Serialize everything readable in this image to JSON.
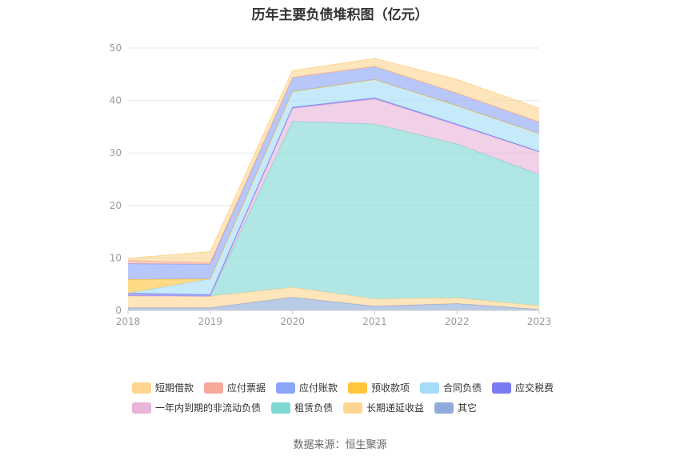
{
  "title": "历年主要负债堆积图（亿元）",
  "source": "数据来源：恒生聚源",
  "chart_data": {
    "type": "area",
    "stacked": true,
    "x": [
      "2018",
      "2019",
      "2020",
      "2021",
      "2022",
      "2023"
    ],
    "ylim": [
      0,
      50
    ],
    "yticks": [
      0,
      10,
      20,
      30,
      40,
      50
    ],
    "grid": true,
    "legend_position": "bottom",
    "series": [
      {
        "name": "其它",
        "color": "#8fabd9",
        "values": [
          0.5,
          0.5,
          2.5,
          0.8,
          1.3,
          0.2
        ]
      },
      {
        "name": "长期递延收益",
        "color": "#ffd591",
        "values": [
          2.3,
          2.2,
          1.9,
          1.4,
          1.1,
          0.7
        ]
      },
      {
        "name": "租赁负债",
        "color": "#7fd8d4",
        "values": [
          0,
          0,
          31.6,
          33.3,
          29.3,
          25.0
        ]
      },
      {
        "name": "一年内到期的非流动负债",
        "color": "#e8b4d9",
        "values": [
          0,
          0,
          2.5,
          4.8,
          3.6,
          4.3
        ]
      },
      {
        "name": "应交税费",
        "color": "#7b7bf0",
        "values": [
          0.5,
          0.3,
          0.2,
          0.2,
          0.2,
          0.1
        ]
      },
      {
        "name": "合同负债",
        "color": "#a5ddf9",
        "values": [
          0,
          3.0,
          3.0,
          3.5,
          3.5,
          3.4
        ]
      },
      {
        "name": "预收款项",
        "color": "#ffc53d",
        "values": [
          2.6,
          0,
          0,
          0,
          0,
          0
        ]
      },
      {
        "name": "应付账款",
        "color": "#8ca5f7",
        "values": [
          3.0,
          2.8,
          2.7,
          2.5,
          2.4,
          2.2
        ]
      },
      {
        "name": "应付票据",
        "color": "#f6a99a",
        "values": [
          0.6,
          0.3,
          0,
          0,
          0,
          0
        ]
      },
      {
        "name": "短期借款",
        "color": "#ffd591",
        "values": [
          0.4,
          2.1,
          1.3,
          1.5,
          2.6,
          2.6
        ]
      }
    ]
  },
  "legend": {
    "row1": [
      {
        "name": "短期借款",
        "color": "#ffd591"
      },
      {
        "name": "应付票据",
        "color": "#f6a99a"
      },
      {
        "name": "应付账款",
        "color": "#8ca5f7"
      },
      {
        "name": "预收款项",
        "color": "#ffc53d"
      },
      {
        "name": "合同负债",
        "color": "#a5ddf9"
      },
      {
        "name": "应交税费",
        "color": "#7b7bf0"
      }
    ],
    "row2": [
      {
        "name": "一年内到期的非流动负债",
        "color": "#e8b4d9"
      },
      {
        "name": "租赁负债",
        "color": "#7fd8d4"
      },
      {
        "name": "长期递延收益",
        "color": "#ffd591"
      },
      {
        "name": "其它",
        "color": "#8fabd9"
      }
    ]
  }
}
